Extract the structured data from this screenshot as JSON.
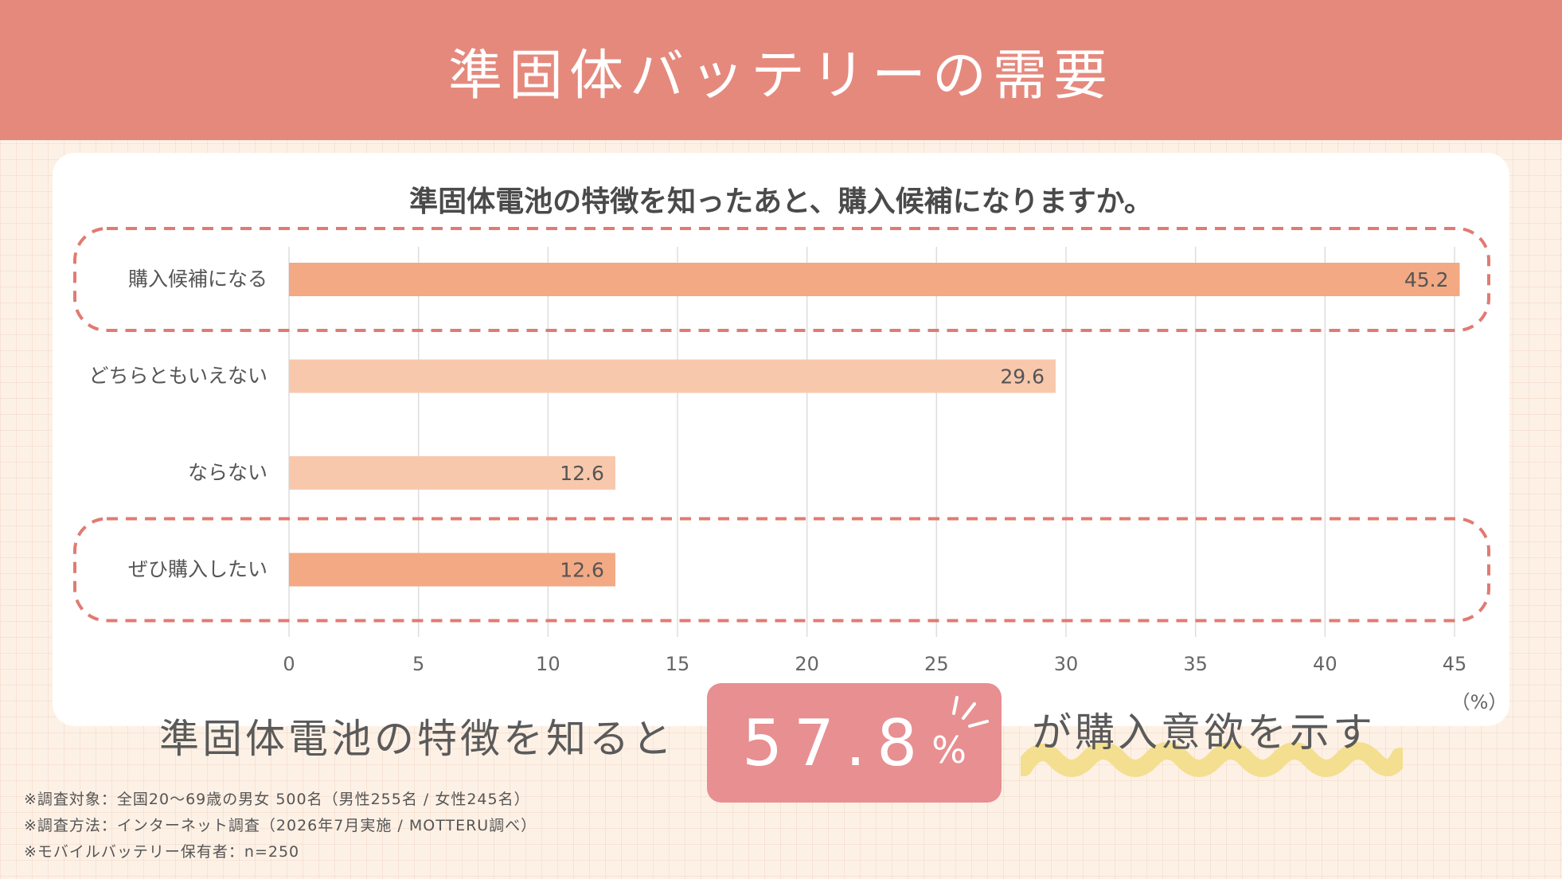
{
  "header": {
    "title": "準固体バッテリーの需要"
  },
  "chart_data": {
    "type": "bar",
    "orientation": "horizontal",
    "title": "準固体電池の特徴を知ったあと、購入候補になりますか。",
    "categories": [
      "購入候補になる",
      "どちらともいえない",
      "ならない",
      "ぜひ購入したい"
    ],
    "values": [
      45.2,
      29.6,
      12.6,
      12.6
    ],
    "highlighted": [
      true,
      false,
      false,
      true
    ],
    "xlim": [
      0,
      45
    ],
    "xticks": [
      0,
      5,
      10,
      15,
      20,
      25,
      30,
      35,
      40,
      45
    ],
    "xunit": "（%）",
    "grid": true,
    "colors": {
      "highlight": "#f2a984",
      "normal": "#f8c8ad",
      "dash": "#e07b72",
      "grid": "#dddddd"
    }
  },
  "summary": {
    "prefix": "準固体電池の特徴を知ると",
    "value": "57.8",
    "unit": "%",
    "suffix": "が購入意欲を示す"
  },
  "notes": [
    "※調査対象：全国20〜69歳の男女 500名（男性255名 / 女性245名）",
    "※調査方法：インターネット調査（2026年7月実施 / MOTTERU調べ）",
    "※モバイルバッテリー保有者：n=250"
  ]
}
